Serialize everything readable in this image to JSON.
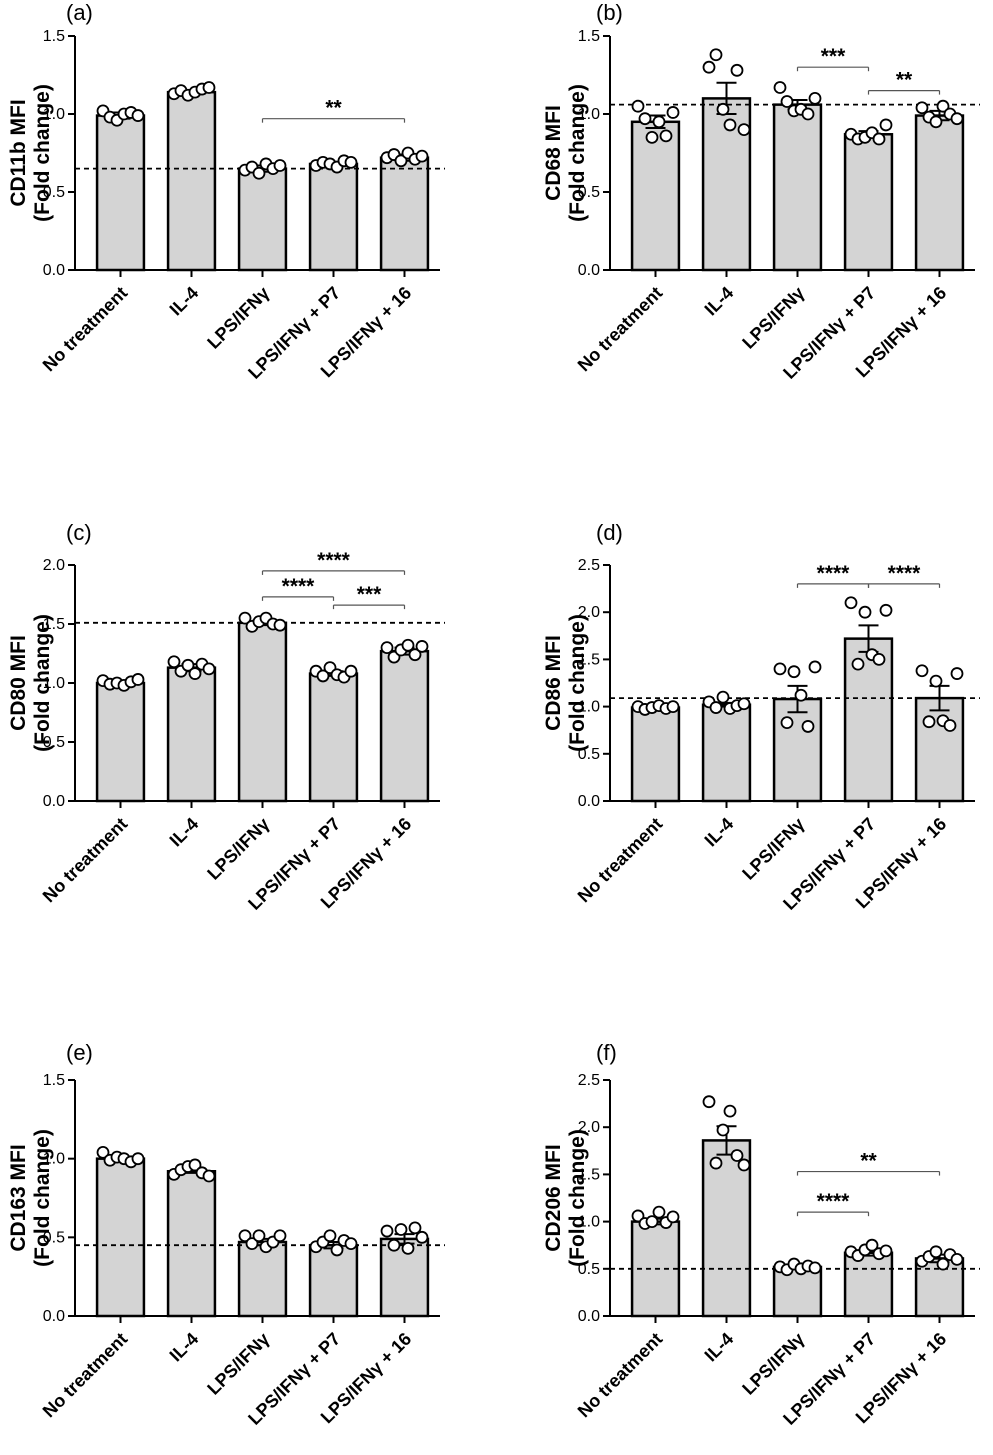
{
  "chart_data": [
    {
      "type": "bar",
      "panel": "(a)",
      "ylabel": "CD11b MFI",
      "ylabel2": "(Fold change)",
      "ylim": [
        0,
        1.5
      ],
      "yticks": [
        "0.0",
        "0.5",
        "1.0",
        "1.5"
      ],
      "categories": [
        "No treatment",
        "IL-4",
        "LPS/IFNγ",
        "LPS/IFNγ + P7",
        "LPS/IFNγ + 16"
      ],
      "values": [
        0.99,
        1.14,
        0.65,
        0.68,
        0.72
      ],
      "errors": [
        0.02,
        0.01,
        0.02,
        0.01,
        0.02
      ],
      "points": [
        [
          1.02,
          0.98,
          0.96,
          1.0,
          1.01,
          0.99
        ],
        [
          1.13,
          1.15,
          1.12,
          1.14,
          1.16,
          1.17
        ],
        [
          0.64,
          0.66,
          0.62,
          0.68,
          0.65,
          0.67
        ],
        [
          0.67,
          0.69,
          0.68,
          0.66,
          0.7,
          0.69
        ],
        [
          0.72,
          0.74,
          0.7,
          0.75,
          0.71,
          0.73
        ]
      ],
      "reference_line": 0.65,
      "significance": [
        {
          "from": 2,
          "to": 4,
          "y": 0.97,
          "label": "**"
        }
      ]
    },
    {
      "type": "bar",
      "panel": "(b)",
      "ylabel": "CD68 MFI",
      "ylabel2": "(Fold change)",
      "ylim": [
        0,
        1.5
      ],
      "yticks": [
        "0.0",
        "0.5",
        "1.0",
        "1.5"
      ],
      "categories": [
        "No treatment",
        "IL-4",
        "LPS/IFNγ",
        "LPS/IFNγ + P7",
        "LPS/IFNγ + 16"
      ],
      "values": [
        0.95,
        1.1,
        1.06,
        0.87,
        0.99
      ],
      "errors": [
        0.04,
        0.1,
        0.03,
        0.02,
        0.03
      ],
      "points": [
        [
          1.05,
          0.97,
          0.85,
          0.95,
          0.86,
          1.01
        ],
        [
          1.3,
          1.38,
          1.03,
          0.93,
          1.28,
          0.9
        ],
        [
          1.17,
          1.08,
          1.02,
          1.03,
          1.0,
          1.1
        ],
        [
          0.87,
          0.84,
          0.85,
          0.88,
          0.84,
          0.93
        ],
        [
          1.04,
          0.98,
          0.95,
          1.05,
          1.0,
          0.97
        ]
      ],
      "reference_line": 1.06,
      "significance": [
        {
          "from": 2,
          "to": 3,
          "y": 1.3,
          "label": "***"
        },
        {
          "from": 3,
          "to": 4,
          "y": 1.15,
          "label": "**"
        }
      ]
    },
    {
      "type": "bar",
      "panel": "(c)",
      "ylabel": "CD80 MFI",
      "ylabel2": "(Fold change)",
      "ylim": [
        0,
        2.0
      ],
      "yticks": [
        "0.0",
        "0.5",
        "1.0",
        "1.5",
        "2.0"
      ],
      "categories": [
        "No treatment",
        "IL-4",
        "LPS/IFNγ",
        "LPS/IFNγ + P7",
        "LPS/IFNγ + 16"
      ],
      "values": [
        1.0,
        1.13,
        1.51,
        1.08,
        1.27
      ],
      "errors": [
        0.01,
        0.03,
        0.02,
        0.02,
        0.03
      ],
      "points": [
        [
          1.02,
          0.99,
          1.0,
          0.98,
          1.01,
          1.03
        ],
        [
          1.18,
          1.1,
          1.15,
          1.08,
          1.16,
          1.12
        ],
        [
          1.55,
          1.48,
          1.52,
          1.55,
          1.5,
          1.49
        ],
        [
          1.1,
          1.06,
          1.13,
          1.07,
          1.05,
          1.1
        ],
        [
          1.3,
          1.22,
          1.28,
          1.32,
          1.24,
          1.31
        ]
      ],
      "reference_line": 1.51,
      "significance": [
        {
          "from": 2,
          "to": 4,
          "y": 1.95,
          "label": "****"
        },
        {
          "from": 2,
          "to": 3,
          "y": 1.73,
          "label": "****"
        },
        {
          "from": 3,
          "to": 4,
          "y": 1.66,
          "label": "***"
        }
      ]
    },
    {
      "type": "bar",
      "panel": "(d)",
      "ylabel": "CD86 MFI",
      "ylabel2": "(Fold change)",
      "ylim": [
        0,
        2.5
      ],
      "yticks": [
        "0.0",
        "0.5",
        "1.0",
        "1.5",
        "2.0",
        "2.5"
      ],
      "categories": [
        "No treatment",
        "IL-4",
        "LPS/IFNγ",
        "LPS/IFNγ + P7",
        "LPS/IFNγ + 16"
      ],
      "values": [
        0.99,
        1.02,
        1.08,
        1.72,
        1.09
      ],
      "errors": [
        0.01,
        0.02,
        0.14,
        0.14,
        0.13
      ],
      "points": [
        [
          1.0,
          0.97,
          0.99,
          1.01,
          0.98,
          1.0
        ],
        [
          1.05,
          0.99,
          1.1,
          0.98,
          1.01,
          1.03
        ],
        [
          1.4,
          0.83,
          1.37,
          1.12,
          0.79,
          1.42
        ],
        [
          2.1,
          1.45,
          2.0,
          1.55,
          1.5,
          2.02
        ],
        [
          1.38,
          0.84,
          1.27,
          0.85,
          0.8,
          1.35
        ]
      ],
      "reference_line": 1.09,
      "significance": [
        {
          "from": 2,
          "to": 3,
          "y": 2.3,
          "label": "****"
        },
        {
          "from": 3,
          "to": 4,
          "y": 2.3,
          "label": "****"
        }
      ]
    },
    {
      "type": "bar",
      "panel": "(e)",
      "ylabel": "CD163 MFI",
      "ylabel2": "(Fold change)",
      "ylim": [
        0,
        1.5
      ],
      "yticks": [
        "0.0",
        "0.5",
        "1.0",
        "1.5"
      ],
      "categories": [
        "No treatment",
        "IL-4",
        "LPS/IFNγ",
        "LPS/IFNγ  + P7",
        "LPS/IFNγ + 16"
      ],
      "values": [
        1.0,
        0.92,
        0.47,
        0.45,
        0.49
      ],
      "errors": [
        0.01,
        0.01,
        0.02,
        0.02,
        0.03
      ],
      "points": [
        [
          1.04,
          0.99,
          1.01,
          1.0,
          0.98,
          1.0
        ],
        [
          0.9,
          0.93,
          0.95,
          0.96,
          0.91,
          0.89
        ],
        [
          0.51,
          0.46,
          0.51,
          0.44,
          0.47,
          0.51
        ],
        [
          0.44,
          0.47,
          0.51,
          0.42,
          0.48,
          0.46
        ],
        [
          0.54,
          0.45,
          0.55,
          0.43,
          0.56,
          0.5
        ]
      ],
      "reference_line": 0.45,
      "significance": []
    },
    {
      "type": "bar",
      "panel": "(f)",
      "ylabel": "CD206 MFI",
      "ylabel2": "(Fold change)",
      "ylim": [
        0,
        2.5
      ],
      "yticks": [
        "0.0",
        "0.5",
        "1.0",
        "1.5",
        "2.0",
        "2.5"
      ],
      "categories": [
        "No treatment",
        "IL-4",
        "LPS/IFNγ",
        "LPS/IFNγ + P7",
        "LPS/IFNγ + 16"
      ],
      "values": [
        1.0,
        1.86,
        0.52,
        0.67,
        0.61
      ],
      "errors": [
        0.03,
        0.15,
        0.02,
        0.03,
        0.04
      ],
      "points": [
        [
          1.06,
          0.98,
          1.0,
          1.1,
          0.99,
          1.05
        ],
        [
          2.27,
          1.62,
          1.97,
          2.17,
          1.7,
          1.6
        ],
        [
          0.52,
          0.49,
          0.55,
          0.5,
          0.53,
          0.51
        ],
        [
          0.68,
          0.64,
          0.7,
          0.75,
          0.66,
          0.69
        ],
        [
          0.58,
          0.63,
          0.68,
          0.55,
          0.65,
          0.6
        ]
      ],
      "reference_line": 0.5,
      "significance": [
        {
          "from": 2,
          "to": 4,
          "y": 1.53,
          "label": "**"
        },
        {
          "from": 2,
          "to": 3,
          "y": 1.1,
          "label": "****"
        }
      ]
    }
  ]
}
